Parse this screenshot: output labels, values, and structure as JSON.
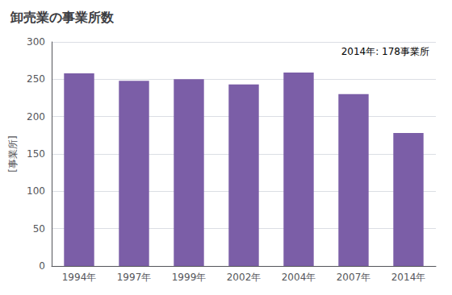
{
  "chart_data": {
    "type": "bar",
    "title": "卸売業の事業所数",
    "ylabel": "[事業所]",
    "annotation": "2014年: 178事業所",
    "categories": [
      "1994年",
      "1997年",
      "1999年",
      "2002年",
      "2004年",
      "2007年",
      "2014年"
    ],
    "values": [
      258,
      248,
      250,
      243,
      259,
      230,
      178
    ],
    "color": "#7b5ea7",
    "ylim": [
      0,
      300
    ],
    "yticks": [
      0,
      50,
      100,
      150,
      200,
      250,
      300
    ],
    "grid": true
  }
}
